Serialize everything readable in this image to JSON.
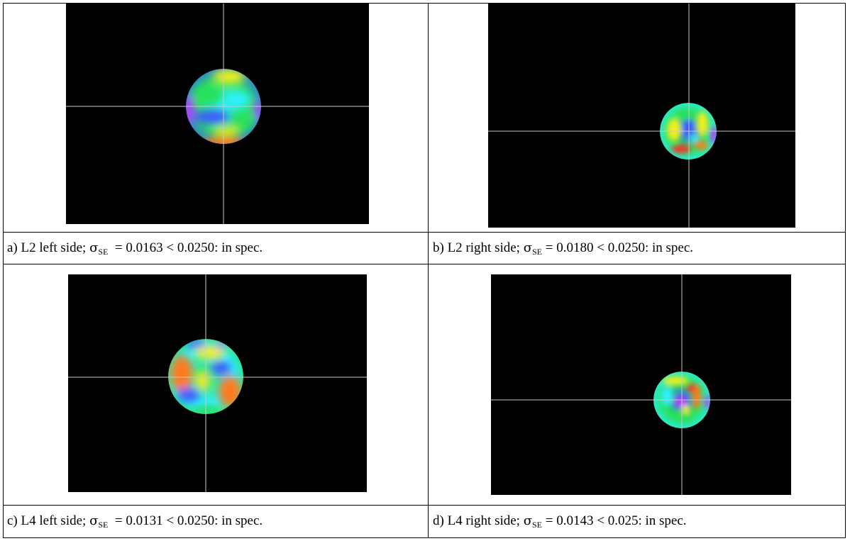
{
  "figures": [
    {
      "id": "a",
      "caption_prefix": "a) L2 left side; ",
      "sigma_symbol": "σ",
      "sigma_subscript": "SE",
      "caption_suffix": "  = 0.0163 < 0.0250: in spec.",
      "colormap": [
        "#b43cff",
        "#3b5bff",
        "#2ff0ff",
        "#26e05a",
        "#f2ef1f",
        "#ff7a1a",
        "#ff2a2a"
      ]
    },
    {
      "id": "b",
      "caption_prefix": "b) L2 right side; ",
      "sigma_symbol": "σ",
      "sigma_subscript": "SE",
      "caption_suffix": " = 0.0180 < 0.0250: in spec.",
      "colormap": [
        "#b43cff",
        "#3b5bff",
        "#2ff0ff",
        "#26e05a",
        "#f2ef1f",
        "#ff7a1a",
        "#ff2a2a"
      ]
    },
    {
      "id": "c",
      "caption_prefix": "c) L4 left side; ",
      "sigma_symbol": "σ",
      "sigma_subscript": "SE",
      "caption_suffix": "  = 0.0131 < 0.0250: in spec.",
      "colormap": [
        "#b43cff",
        "#3b5bff",
        "#2ff0ff",
        "#26e05a",
        "#f2ef1f",
        "#ff7a1a",
        "#ff2a2a"
      ]
    },
    {
      "id": "d",
      "caption_prefix": "d) L4 right side; ",
      "sigma_symbol": "σ",
      "sigma_subscript": "SE",
      "caption_suffix": " = 0.0143 < 0.025: in spec.",
      "colormap": [
        "#b43cff",
        "#3b5bff",
        "#2ff0ff",
        "#26e05a",
        "#f2ef1f",
        "#ff7a1a",
        "#ff2a2a"
      ]
    }
  ],
  "colors": {
    "image_background": "#000000",
    "crosshair": "#c8c8c8",
    "table_border": "#000000"
  }
}
